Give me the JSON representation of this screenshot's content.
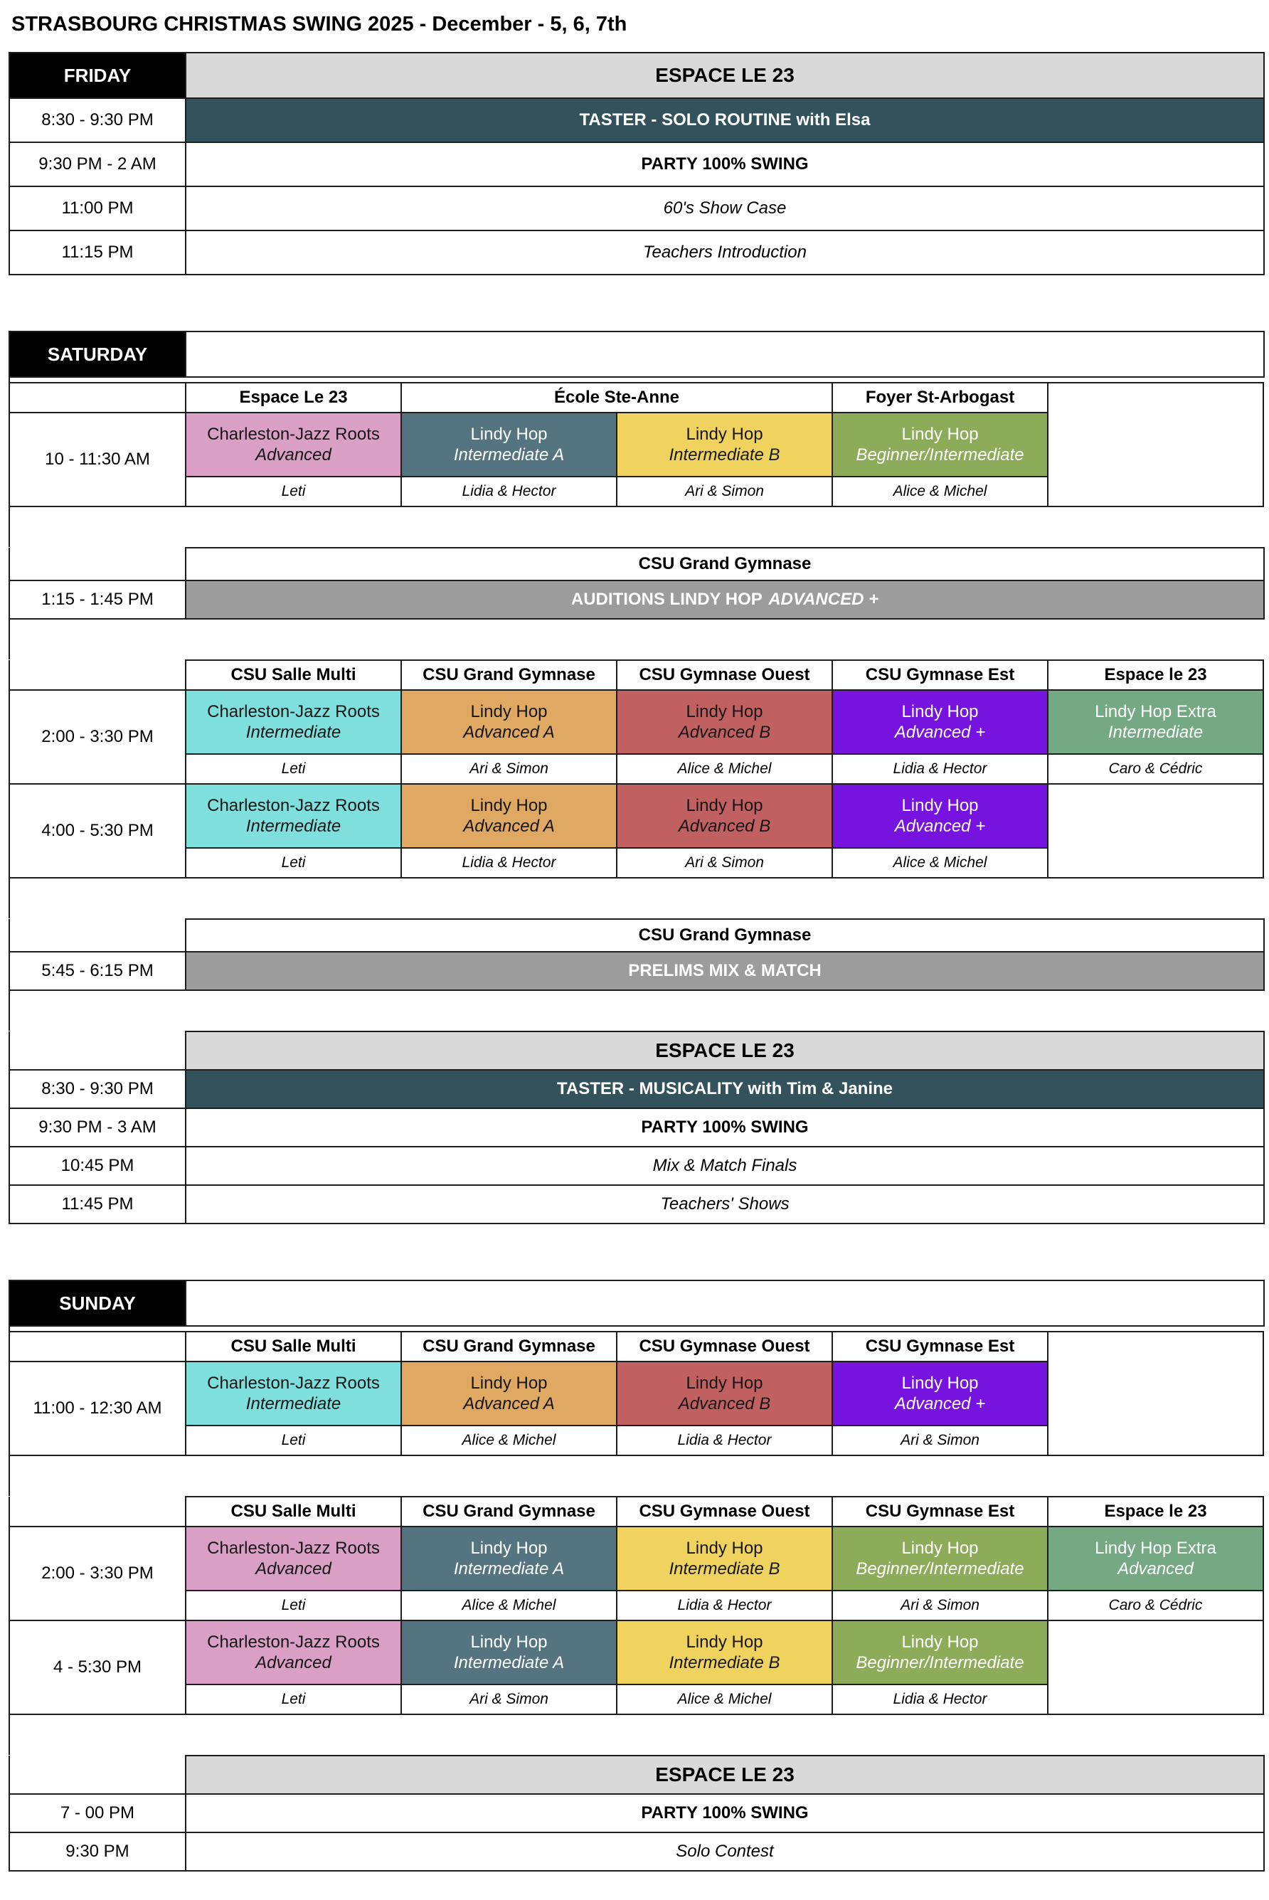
{
  "title": "STRASBOURG CHRISTMAS SWING 2025 - December - 5, 6, 7th",
  "palette": {
    "day_header_bg": "#000000",
    "venue_banner_bg": "#d9d9d9",
    "taster_row_bg": "#33525c",
    "competition_banner_bg": "#9c9c9c",
    "charleston_advanced_pink": "#d99fc5",
    "lindy_intermediate_a_slate": "#54747f",
    "lindy_intermediate_b_yellow": "#f0d35f",
    "lindy_beginner_intermediate_green": "#8dac59",
    "charleston_intermediate_cyan": "#7fdfdc",
    "lindy_advanced_a_orange": "#dfa963",
    "lindy_advanced_b_brick": "#c16060",
    "lindy_advanced_plus_purple": "#7713df",
    "lindy_extra_seagreen": "#75a983",
    "border": "#1d1d1d"
  },
  "friday": {
    "day": "FRIDAY",
    "venue": "ESPACE LE 23",
    "events": [
      {
        "time": "8:30 - 9:30 PM",
        "label": "TASTER - SOLO ROUTINE with Elsa"
      },
      {
        "time": "9:30 PM - 2 AM",
        "label": "PARTY 100% SWING"
      },
      {
        "time": "11:00 PM",
        "label": "60's Show Case"
      },
      {
        "time": "11:15 PM",
        "label": "Teachers Introduction"
      }
    ]
  },
  "saturday": {
    "day": "SATURDAY",
    "morning": {
      "time": "10 - 11:30 AM",
      "venues": [
        "Espace Le 23",
        "École Ste-Anne",
        "Foyer St-Arbogast"
      ],
      "classes": [
        {
          "name": "Charleston-Jazz Roots",
          "level": "Advanced"
        },
        {
          "name": "Lindy Hop",
          "level": "Intermediate A"
        },
        {
          "name": "Lindy Hop",
          "level": "Intermediate B"
        },
        {
          "name": "Lindy Hop",
          "level": "Beginner/Intermediate"
        }
      ],
      "teachers": [
        "Leti",
        "Lidia & Hector",
        "Ari & Simon",
        "Alice & Michel"
      ]
    },
    "auditions": {
      "venue": "CSU Grand Gymnase",
      "time": "1:15 - 1:45 PM",
      "label": "AUDITIONS LINDY HOP",
      "label_em": "ADVANCED +"
    },
    "afternoon": {
      "venues": [
        "CSU Salle Multi",
        "CSU Grand Gymnase",
        "CSU Gymnase Ouest",
        "CSU Gymnase Est",
        "Espace le 23"
      ],
      "slot1": {
        "time": "2:00 - 3:30 PM",
        "classes": [
          {
            "name": "Charleston-Jazz Roots",
            "level": "Intermediate"
          },
          {
            "name": "Lindy Hop",
            "level": "Advanced A"
          },
          {
            "name": "Lindy Hop",
            "level": "Advanced B"
          },
          {
            "name": "Lindy Hop",
            "level": "Advanced +"
          },
          {
            "name": "Lindy Hop Extra",
            "level": "Intermediate"
          }
        ],
        "teachers": [
          "Leti",
          "Ari & Simon",
          "Alice & Michel",
          "Lidia & Hector",
          "Caro & Cédric"
        ]
      },
      "slot2": {
        "time": "4:00 - 5:30 PM",
        "classes": [
          {
            "name": "Charleston-Jazz Roots",
            "level": "Intermediate"
          },
          {
            "name": "Lindy Hop",
            "level": "Advanced A"
          },
          {
            "name": "Lindy Hop",
            "level": "Advanced B"
          },
          {
            "name": "Lindy Hop",
            "level": "Advanced +"
          }
        ],
        "teachers": [
          "Leti",
          "Lidia & Hector",
          "Ari & Simon",
          "Alice & Michel"
        ]
      }
    },
    "prelims": {
      "venue": "CSU Grand Gymnase",
      "time": "5:45 - 6:15 PM",
      "label": "PRELIMS MIX & MATCH"
    },
    "evening": {
      "venue": "ESPACE LE 23",
      "events": [
        {
          "time": "8:30 - 9:30 PM",
          "label": "TASTER - MUSICALITY with Tim & Janine"
        },
        {
          "time": "9:30 PM - 3 AM",
          "label": "PARTY 100% SWING"
        },
        {
          "time": "10:45 PM",
          "label": "Mix & Match Finals"
        },
        {
          "time": "11:45 PM",
          "label": "Teachers' Shows"
        }
      ]
    }
  },
  "sunday": {
    "day": "SUNDAY",
    "morning": {
      "time": "11:00 - 12:30 AM",
      "venues": [
        "CSU Salle Multi",
        "CSU Grand Gymnase",
        "CSU Gymnase Ouest",
        "CSU Gymnase Est"
      ],
      "classes": [
        {
          "name": "Charleston-Jazz Roots",
          "level": "Intermediate"
        },
        {
          "name": "Lindy Hop",
          "level": "Advanced A"
        },
        {
          "name": "Lindy Hop",
          "level": "Advanced B"
        },
        {
          "name": "Lindy Hop",
          "level": "Advanced +"
        }
      ],
      "teachers": [
        "Leti",
        "Alice & Michel",
        "Lidia & Hector",
        "Ari & Simon"
      ]
    },
    "afternoon": {
      "venues": [
        "CSU Salle Multi",
        "CSU Grand Gymnase",
        "CSU Gymnase Ouest",
        "CSU Gymnase Est",
        "Espace le 23"
      ],
      "slot1": {
        "time": "2:00 - 3:30 PM",
        "classes": [
          {
            "name": "Charleston-Jazz Roots",
            "level": "Advanced"
          },
          {
            "name": "Lindy Hop",
            "level": "Intermediate A"
          },
          {
            "name": "Lindy Hop",
            "level": "Intermediate B"
          },
          {
            "name": "Lindy Hop",
            "level": "Beginner/Intermediate"
          },
          {
            "name": "Lindy Hop Extra",
            "level": "Advanced"
          }
        ],
        "teachers": [
          "Leti",
          "Alice & Michel",
          "Lidia & Hector",
          "Ari & Simon",
          "Caro & Cédric"
        ]
      },
      "slot2": {
        "time": "4 - 5:30 PM",
        "classes": [
          {
            "name": "Charleston-Jazz Roots",
            "level": "Advanced"
          },
          {
            "name": "Lindy Hop",
            "level": "Intermediate A"
          },
          {
            "name": "Lindy Hop",
            "level": "Intermediate B"
          },
          {
            "name": "Lindy Hop",
            "level": "Beginner/Intermediate"
          }
        ],
        "teachers": [
          "Leti",
          "Ari & Simon",
          "Alice & Michel",
          "Lidia & Hector"
        ]
      }
    },
    "evening": {
      "venue": "ESPACE LE 23",
      "events": [
        {
          "time": "7 - 00 PM",
          "label": "PARTY 100% SWING"
        },
        {
          "time": "9:30 PM",
          "label": "Solo Contest"
        }
      ]
    }
  }
}
